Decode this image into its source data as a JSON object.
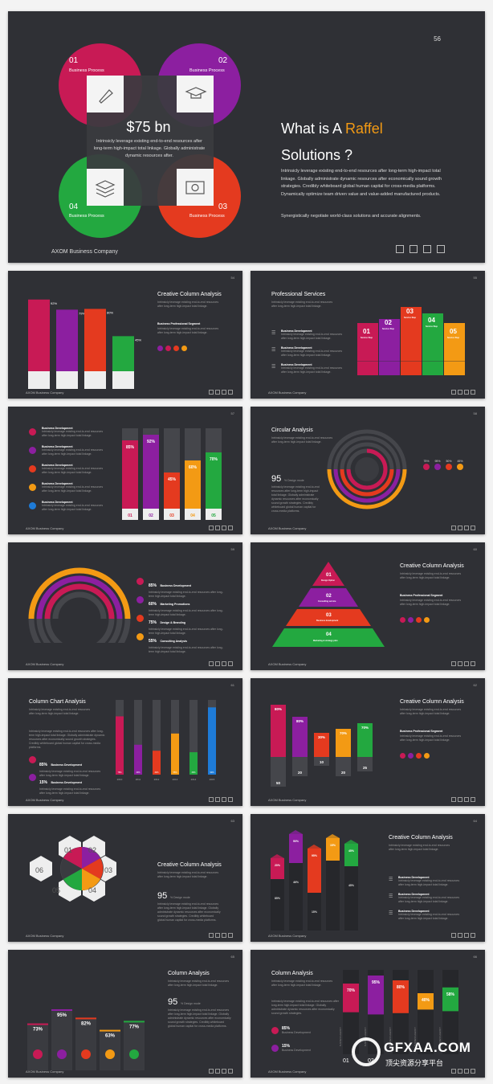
{
  "colors": {
    "pink": "#c81a55",
    "purple": "#8c1fa0",
    "red": "#e43a1f",
    "orange": "#f39a14",
    "green": "#23a840",
    "blue": "#1e7bd7",
    "dark": "#2f3035",
    "grey": "#45464b"
  },
  "main": {
    "page": "56",
    "circles": [
      {
        "num": "01",
        "label": "Business Process"
      },
      {
        "num": "02",
        "label": "Business Process"
      },
      {
        "num": "04",
        "label": "Business Process"
      },
      {
        "num": "03",
        "label": "Business Process"
      }
    ],
    "center_value": "$75 bn",
    "center_text": "Intrinsicly leverage existing end-to-end resources after long-term high-impact total linkage. Globally administrate dynamic resources after.",
    "title_a": "What is A ",
    "title_b": "Raffel",
    "title_c": "Solutions ?",
    "para1": "Intrinsicly leverage existing end-to-end resources after long-term high-impact total linkage. Globally administrate dynamic resources after economically sound growth strategies. Credibly whiteboard global human capital for cross-media platforms. Dynamically optimize team driven value and value-added manufactured products.",
    "para2": "Synergistically negotiate world-class solutions and accurate alignments.",
    "footer": "AXOM Business Company"
  },
  "footer": "AXOM Business Company",
  "s1": {
    "page": "54",
    "title": "Creative Column Analysis",
    "text": "Intrinsicly leverage existing end-to-end resources after long-term high-impact total linkage.",
    "sub": "Business Professional Segment",
    "subtext": "Intrinsicly leverage existing end-to-end resources after long-term high-impact total linkage."
  },
  "s2": {
    "page": "55",
    "title": "Professional Services",
    "text": "Intrinsicly leverage existing end-to-end resources after long-term high-impact total linkage.",
    "items": [
      {
        "h": "Business Development",
        "t": "Intrinsicly leverage existing end-to-end resources after long-term high-impact total linkage."
      },
      {
        "h": "Business Development",
        "t": "Intrinsicly leverage existing end-to-end resources after long-term high-impact total linkage."
      },
      {
        "h": "Business Development",
        "t": "Intrinsicly leverage existing end-to-end resources after long-term high-impact total linkage."
      }
    ],
    "steps": [
      {
        "n": "01",
        "l": "Service Step"
      },
      {
        "n": "02",
        "l": "Service Step"
      },
      {
        "n": "03",
        "l": "Service Step"
      },
      {
        "n": "04",
        "l": "Service Step"
      },
      {
        "n": "05",
        "l": "Service Step"
      }
    ]
  },
  "s3": {
    "page": "57",
    "items": [
      {
        "h": "Business Development",
        "t": "Intrinsicly leverage existing end-to-end resources after long-term high-impact total linkage."
      },
      {
        "h": "Business Development",
        "t": "Intrinsicly leverage existing end-to-end resources after long-term high-impact total linkage."
      },
      {
        "h": "Business Development",
        "t": "Intrinsicly leverage existing end-to-end resources after long-term high-impact total linkage."
      },
      {
        "h": "Business Development",
        "t": "Intrinsicly leverage existing end-to-end resources after long-term high-impact total linkage."
      },
      {
        "h": "Business Development",
        "t": "Intrinsicly leverage existing end-to-end resources after long-term high-impact total linkage."
      }
    ]
  },
  "s4": {
    "page": "58",
    "title": "Circular Analysis",
    "text": "Intrinsicly leverage existing end-to-end resources after long-term high-impact total linkage.",
    "big": "95",
    "bigsub": "% Design mode",
    "para": "Intrinsicly leverage existing end-to-end resources after long-term high-impact total linkage. Globally administrate dynamic resources after economically sound growth strategies. Credibly whiteboard global human capital for cross-media platforms.",
    "pcts": [
      "75%",
      "95%",
      "50%",
      "45%"
    ]
  },
  "s5": {
    "page": "59",
    "items": [
      {
        "p": "85%",
        "h": "Business Development",
        "t": "Intrinsicly leverage existing end-to-end resources after long-term high-impact total linkage."
      },
      {
        "p": "60%",
        "h": "Marketing Promotions",
        "t": "Intrinsicly leverage existing end-to-end resources after long-term high-impact total linkage."
      },
      {
        "p": "75%",
        "h": "Design & Branding",
        "t": "Intrinsicly leverage existing end-to-end resources after long-term high-impact total linkage."
      },
      {
        "p": "55%",
        "h": "Consulting Analysis",
        "t": "Intrinsicly leverage existing end-to-end resources after long-term high-impact total linkage."
      }
    ]
  },
  "s6": {
    "page": "60",
    "title": "Creative Column Analysis",
    "text": "Intrinsicly leverage existing end-to-end resources after long-term high-impact total linkage.",
    "sub": "Business Professional Segment",
    "subtext": "Intrinsicly leverage existing end-to-end resources after long-term high-impact total linkage.",
    "tiers": [
      {
        "n": "01",
        "l": "Design Option"
      },
      {
        "n": "02",
        "l": "Consulting service"
      },
      {
        "n": "03",
        "l": "Business development"
      },
      {
        "n": "04",
        "l": "Marketing & strategy plan"
      }
    ]
  },
  "s7": {
    "page": "61",
    "title": "Column Chart Analysis",
    "text": "Intrinsicly leverage existing end-to-end resources after long-term high-impact total linkage.",
    "para": "Intrinsicly leverage existing end-to-end resources after long-term high-impact total linkage. Globally administrate dynamic resources after economically sound growth strategies. Credibly whiteboard global human capital for cross-media platforms.",
    "items": [
      {
        "p": "85%",
        "h": "Business Development",
        "t": "Intrinsicly leverage existing end-to-end resources after long-term high-impact total linkage."
      },
      {
        "p": "15%",
        "h": "Business Development",
        "t": "Intrinsicly leverage existing end-to-end resources after long-term high-impact total linkage."
      }
    ],
    "years": [
      "2010",
      "2011",
      "2012",
      "2013",
      "2014",
      "2015"
    ]
  },
  "s8": {
    "page": "62",
    "title": "Creative Column Analysis",
    "text": "Intrinsicly leverage existing end-to-end resources after long-term high-impact total linkage.",
    "sub": "Business Professional Segment",
    "subtext": "Intrinsicly leverage existing end-to-end resources after long-term high-impact total linkage."
  },
  "s9": {
    "page": "63",
    "title": "Creative Column Analysis",
    "text": "Intrinsicly leverage existing end-to-end resources after long-term high-impact total linkage.",
    "big": "95",
    "bigsub": "% Design mode",
    "para": "Intrinsicly leverage existing end-to-end resources after long-term high-impact total linkage. Globally administrate dynamic resources after economically sound growth strategies. Credibly whiteboard global human capital for cross-media platforms.",
    "hex": [
      "01",
      "02",
      "03",
      "04",
      "05",
      "06"
    ]
  },
  "s10": {
    "page": "64",
    "title": "Creative Column Analysis",
    "text": "Intrinsicly leverage existing end-to-end resources after long-term high-impact total linkage.",
    "items": [
      {
        "h": "Business Development",
        "t": "Intrinsicly leverage existing end-to-end resources after long-term high-impact total linkage."
      },
      {
        "h": "Business Development",
        "t": "Intrinsicly leverage existing end-to-end resources after long-term high-impact total linkage."
      },
      {
        "h": "Business Development",
        "t": "Intrinsicly leverage existing end-to-end resources after long-term high-impact total linkage."
      }
    ]
  },
  "s11": {
    "page": "65",
    "title": "Column Analysis",
    "text": "Intrinsicly leverage existing end-to-end resources after long-term high-impact total linkage.",
    "big": "95",
    "bigsub": "% Design mode",
    "para": "Intrinsicly leverage existing end-to-end resources after long-term high-impact total linkage. Globally administrate dynamic resources after economically sound growth strategies. Credibly whiteboard global human capital for cross-media platforms."
  },
  "s12": {
    "page": "66",
    "title": "Column Analysis",
    "text": "Intrinsicly leverage existing end-to-end resources after long-term high-impact total linkage.",
    "para": "Intrinsicly leverage existing end-to-end resources after long-term high-impact total linkage. Globally administrate dynamic resources after economically sound growth strategies.",
    "items": [
      {
        "p": "85%",
        "h": "Business Development"
      },
      {
        "p": "15%",
        "h": "Business Development"
      }
    ],
    "side": [
      "BUSINESS AGENCY",
      "BUSINESS AGENCY",
      "BUSINESS AGENCY",
      "BUSINESS AGENCY",
      "BUSINESS AGENCY"
    ],
    "nums": [
      "01",
      "02"
    ]
  },
  "watermark": {
    "logo": "GFXAA.COM",
    "sub": "顶尖资源分享平台"
  },
  "chart_data": [
    {
      "type": "bar",
      "values": [
        92,
        79,
        80,
        45
      ],
      "labels": [
        "92%",
        "79%",
        "80%",
        "45%"
      ]
    },
    {
      "type": "bar",
      "values": [
        85,
        92,
        45,
        60,
        70
      ],
      "labels": [
        "85%",
        "92%",
        "45%",
        "60%",
        "70%"
      ],
      "categories": [
        "01",
        "02",
        "03",
        "04",
        "05"
      ]
    },
    {
      "type": "bar",
      "values": [
        78,
        40,
        32,
        55,
        30,
        90
      ],
      "labels": [
        "78%",
        "40%",
        "32%",
        "55%",
        "30%",
        "90%"
      ],
      "categories": [
        "2010",
        "2011",
        "2012",
        "2013",
        "2014",
        "2015"
      ]
    },
    {
      "type": "bar",
      "series": [
        {
          "values": [
            80,
            80,
            30,
            70,
            70
          ],
          "labels": [
            "80%",
            "80%",
            "30%",
            "70%",
            "70%"
          ]
        },
        {
          "values": [
            50,
            20,
            10,
            20,
            25
          ],
          "labels": [
            "50",
            "20",
            "10",
            "20",
            "25"
          ]
        }
      ]
    },
    {
      "type": "bar",
      "values": [
        20,
        90,
        95,
        15,
        45
      ],
      "labels": [
        "20%",
        "90%",
        "95%",
        "15%",
        "45%"
      ],
      "bottom": [
        "85%",
        "46%",
        "15%",
        "",
        "45%"
      ]
    },
    {
      "type": "bar",
      "values": [
        73,
        95,
        82,
        63,
        77
      ],
      "labels": [
        "73%",
        "95%",
        "82%",
        "63%",
        "77%"
      ]
    },
    {
      "type": "bar",
      "values": [
        70,
        95,
        80,
        40,
        58
      ],
      "labels": [
        "70%",
        "95%",
        "80%",
        "40%",
        "58%"
      ]
    }
  ]
}
